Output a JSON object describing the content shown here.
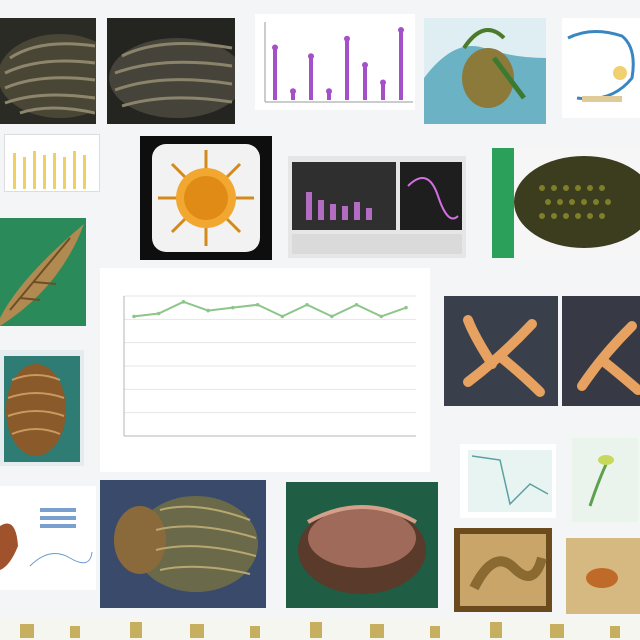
{
  "captions": {
    "row1_strip": "",
    "row2_left": "",
    "row2_right_strip": "",
    "right_middle": "",
    "right_middle_label": ""
  },
  "chart_data": {
    "type": "line",
    "title": "",
    "xlabel": "",
    "ylabel": "",
    "categories": [
      "",
      "",
      "",
      "",
      "",
      "",
      "",
      "",
      "",
      "",
      "",
      ""
    ],
    "series": [
      {
        "values": [
          41,
          42,
          46,
          43,
          44,
          45,
          41,
          45,
          41,
          45,
          41,
          44
        ]
      }
    ],
    "ylim": [
      0,
      48
    ],
    "grid": true,
    "colors": {
      "line": "#8cc68a",
      "marker": "#8cc68a",
      "grid": "#e6e6e6",
      "axis": "#b5b5b5"
    }
  },
  "mini_bar_chart": {
    "type": "bar",
    "values": [
      6,
      1,
      5,
      1,
      7,
      4,
      2,
      8
    ],
    "colors": {
      "bar": "#a450c8"
    }
  }
}
